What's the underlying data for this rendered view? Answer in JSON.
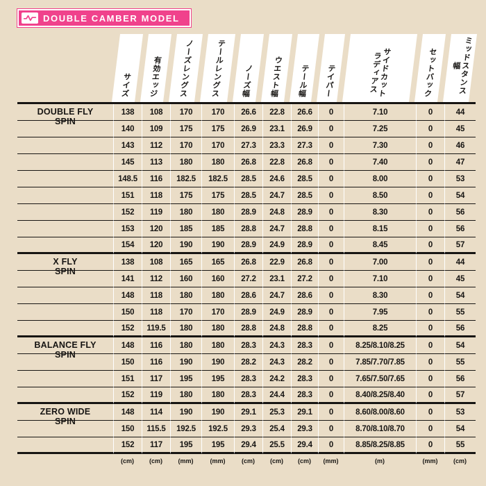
{
  "banner": {
    "title": "DOUBLE CAMBER MODEL"
  },
  "colors": {
    "accent": "#f0428c",
    "background": "#eaddc7",
    "text": "#171513",
    "band": "#ffffff"
  },
  "table": {
    "columns": [
      {
        "label": "サイズ",
        "unit": "(cm)"
      },
      {
        "label": "有効エッジ",
        "unit": "(cm)"
      },
      {
        "label": "ノーズレングス",
        "unit": "(mm)"
      },
      {
        "label": "テールレングス",
        "unit": "(mm)"
      },
      {
        "label": "ノーズ幅",
        "unit": "(cm)"
      },
      {
        "label": "ウエスト幅",
        "unit": "(cm)"
      },
      {
        "label": "テール幅",
        "unit": "(cm)"
      },
      {
        "label": "テイパー",
        "unit": "(mm)"
      },
      {
        "label": "サイドカット\nラディアス",
        "unit": "(m)"
      },
      {
        "label": "セットバック",
        "unit": "(mm)"
      },
      {
        "label": "ミッドスタンス幅",
        "unit": "(cm)"
      }
    ],
    "groups": [
      {
        "model": "DOUBLE FLY\nSPIN",
        "rows": [
          [
            "138",
            "108",
            "170",
            "170",
            "26.6",
            "22.8",
            "26.6",
            "0",
            "7.10",
            "0",
            "44"
          ],
          [
            "140",
            "109",
            "175",
            "175",
            "26.9",
            "23.1",
            "26.9",
            "0",
            "7.25",
            "0",
            "45"
          ],
          [
            "143",
            "112",
            "170",
            "170",
            "27.3",
            "23.3",
            "27.3",
            "0",
            "7.30",
            "0",
            "46"
          ],
          [
            "145",
            "113",
            "180",
            "180",
            "26.8",
            "22.8",
            "26.8",
            "0",
            "7.40",
            "0",
            "47"
          ],
          [
            "148.5",
            "116",
            "182.5",
            "182.5",
            "28.5",
            "24.6",
            "28.5",
            "0",
            "8.00",
            "0",
            "53"
          ],
          [
            "151",
            "118",
            "175",
            "175",
            "28.5",
            "24.7",
            "28.5",
            "0",
            "8.50",
            "0",
            "54"
          ],
          [
            "152",
            "119",
            "180",
            "180",
            "28.9",
            "24.8",
            "28.9",
            "0",
            "8.30",
            "0",
            "56"
          ],
          [
            "153",
            "120",
            "185",
            "185",
            "28.8",
            "24.7",
            "28.8",
            "0",
            "8.15",
            "0",
            "56"
          ],
          [
            "154",
            "120",
            "190",
            "190",
            "28.9",
            "24.9",
            "28.9",
            "0",
            "8.45",
            "0",
            "57"
          ]
        ]
      },
      {
        "model": "X FLY\nSPIN",
        "rows": [
          [
            "138",
            "108",
            "165",
            "165",
            "26.8",
            "22.9",
            "26.8",
            "0",
            "7.00",
            "0",
            "44"
          ],
          [
            "141",
            "112",
            "160",
            "160",
            "27.2",
            "23.1",
            "27.2",
            "0",
            "7.10",
            "0",
            "45"
          ],
          [
            "148",
            "118",
            "180",
            "180",
            "28.6",
            "24.7",
            "28.6",
            "0",
            "8.30",
            "0",
            "54"
          ],
          [
            "150",
            "118",
            "170",
            "170",
            "28.9",
            "24.9",
            "28.9",
            "0",
            "7.95",
            "0",
            "55"
          ],
          [
            "152",
            "119.5",
            "180",
            "180",
            "28.8",
            "24.8",
            "28.8",
            "0",
            "8.25",
            "0",
            "56"
          ]
        ]
      },
      {
        "model": "BALANCE FLY\nSPIN",
        "rows": [
          [
            "148",
            "116",
            "180",
            "180",
            "28.3",
            "24.3",
            "28.3",
            "0",
            "8.25/8.10/8.25",
            "0",
            "54"
          ],
          [
            "150",
            "116",
            "190",
            "190",
            "28.2",
            "24.3",
            "28.2",
            "0",
            "7.85/7.70/7.85",
            "0",
            "55"
          ],
          [
            "151",
            "117",
            "195",
            "195",
            "28.3",
            "24.2",
            "28.3",
            "0",
            "7.65/7.50/7.65",
            "0",
            "56"
          ],
          [
            "152",
            "119",
            "180",
            "180",
            "28.3",
            "24.4",
            "28.3",
            "0",
            "8.40/8.25/8.40",
            "0",
            "57"
          ]
        ]
      },
      {
        "model": "ZERO WIDE\nSPIN",
        "rows": [
          [
            "148",
            "114",
            "190",
            "190",
            "29.1",
            "25.3",
            "29.1",
            "0",
            "8.60/8.00/8.60",
            "0",
            "53"
          ],
          [
            "150",
            "115.5",
            "192.5",
            "192.5",
            "29.3",
            "25.4",
            "29.3",
            "0",
            "8.70/8.10/8.70",
            "0",
            "54"
          ],
          [
            "152",
            "117",
            "195",
            "195",
            "29.4",
            "25.5",
            "29.4",
            "0",
            "8.85/8.25/8.85",
            "0",
            "55"
          ]
        ]
      }
    ]
  }
}
